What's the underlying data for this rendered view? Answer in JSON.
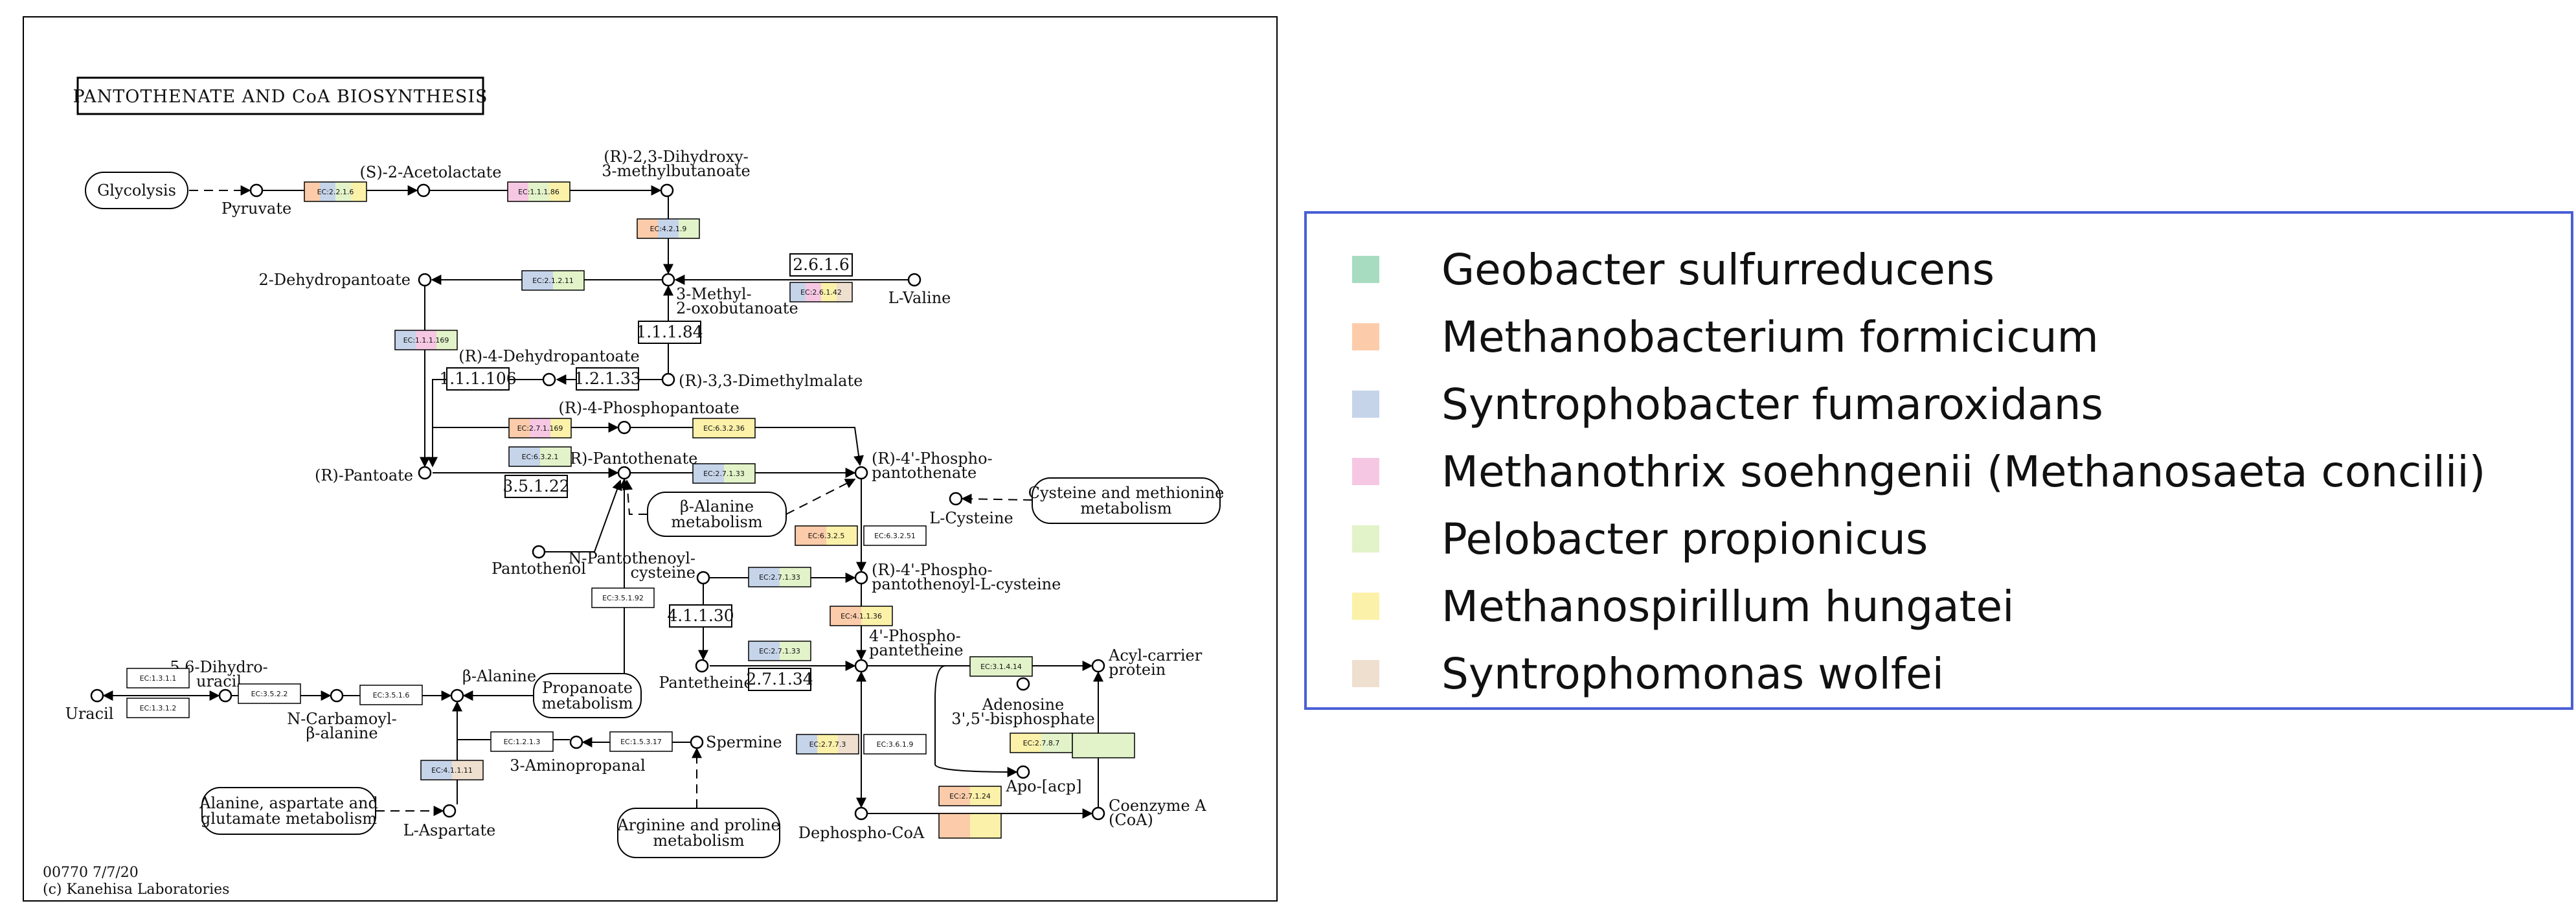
{
  "diagram": {
    "title": "PANTOTHENATE AND CoA BIOSYNTHESIS",
    "footer_map_id": "00770 7/7/20",
    "footer_copyright": "(c) Kanehisa Laboratories",
    "maps": [
      {
        "id": "glycolysis",
        "label": "Glycolysis"
      },
      {
        "id": "cys-met",
        "label": "Cysteine and methionine\nmetabolism"
      },
      {
        "id": "beta-ala",
        "label": "β-Alanine\nmetabolism"
      },
      {
        "id": "propanoate",
        "label": "Propanoate\nmetabolism"
      },
      {
        "id": "ala-asp-glu",
        "label": "Alanine, aspartate and\nglutamate metabolism"
      },
      {
        "id": "arg-pro",
        "label": "Arginine and proline\nmetabolism"
      }
    ],
    "compounds": [
      {
        "id": "pyruvate",
        "label": "Pyruvate"
      },
      {
        "id": "acetolactate",
        "label": "(S)-2-Acetolactate"
      },
      {
        "id": "dihydroxy-methylbutanoate",
        "label": "(R)-2,3-Dihydroxy-\n3-methylbutanoate"
      },
      {
        "id": "dehydropantoate",
        "label": "2-Dehydropantoate"
      },
      {
        "id": "methyl-oxobutanoate",
        "label": "3-Methyl-\n2-oxobutanoate"
      },
      {
        "id": "l-valine",
        "label": "L-Valine"
      },
      {
        "id": "r4-dehydropantoate",
        "label": "(R)-4-Dehydropantoate"
      },
      {
        "id": "dimethylmalate",
        "label": "(R)-3,3-Dimethylmalate"
      },
      {
        "id": "phosphopantoate",
        "label": "(R)-4-Phosphopantoate"
      },
      {
        "id": "pantoate",
        "label": "(R)-Pantoate"
      },
      {
        "id": "pantothenate",
        "label": "(R)-Pantothenate"
      },
      {
        "id": "phosphopantothenate",
        "label": "(R)-4'-Phospho-\npantothenate"
      },
      {
        "id": "l-cysteine",
        "label": "L-Cysteine"
      },
      {
        "id": "pantothenol",
        "label": "Pantothenol"
      },
      {
        "id": "n-pantothenoyl-cysteine",
        "label": "N-Pantothenoyl-\ncysteine"
      },
      {
        "id": "phosphopantothenoyl-cysteine",
        "label": "(R)-4'-Phospho-\npantothenoyl-L-cysteine"
      },
      {
        "id": "phosphopantetheine",
        "label": "4'-Phospho-\npantetheine"
      },
      {
        "id": "pantetheine",
        "label": "Pantetheine"
      },
      {
        "id": "acyl-carrier",
        "label": "Acyl-carrier\nprotein"
      },
      {
        "id": "adenosine-bisphosphate",
        "label": "Adenosine\n3',5'-bisphosphate"
      },
      {
        "id": "apo-acp",
        "label": "Apo-[acp]"
      },
      {
        "id": "dephospho-coa",
        "label": "Dephospho-CoA"
      },
      {
        "id": "coa",
        "label": "Coenzyme A\n(CoA)"
      },
      {
        "id": "uracil",
        "label": "Uracil"
      },
      {
        "id": "dihydrouracil",
        "label": "5,6-Dihydro-\nuracil"
      },
      {
        "id": "carbamoyl-ala",
        "label": "N-Carbamoyl-\nβ-alanine"
      },
      {
        "id": "b-alanine",
        "label": "β-Alanine"
      },
      {
        "id": "aminopropanal",
        "label": "3-Aminopropanal"
      },
      {
        "id": "spermine",
        "label": "Spermine"
      },
      {
        "id": "l-aspartate",
        "label": "L-Aspartate"
      }
    ],
    "enzymes": [
      {
        "id": "e1",
        "label": "EC:2.2.1.6",
        "colors": [
          "#fcccaa",
          "#c6d4ea",
          "#e2f3c9",
          "#fbf1a9"
        ]
      },
      {
        "id": "e2",
        "label": "EC:1.1.1.86",
        "colors": [
          "#f6c7e3",
          "#e2f3c9",
          "#fbf1a9"
        ]
      },
      {
        "id": "e3",
        "label": "EC:4.2.1.9",
        "colors": [
          "#fcccaa",
          "#c6d4ea",
          "#e2f3c9"
        ]
      },
      {
        "id": "e4",
        "label": "EC:2.1.2.11",
        "colors": [
          "#c6d4ea",
          "#e2f3c9"
        ]
      },
      {
        "id": "e5",
        "label": "EC:2.6.1.42",
        "colors": [
          "#c6d4ea",
          "#f6c7e3",
          "#fbf1a9",
          "#efdfcf"
        ]
      },
      {
        "id": "e6",
        "label": "EC:1.1.1.169",
        "colors": [
          "#c6d4ea",
          "#f6c7e3",
          "#e2f3c9"
        ]
      },
      {
        "id": "e7",
        "label": "EC:2.7.1.169",
        "colors": [
          "#fcccaa",
          "#f6c7e3",
          "#fbf1a9"
        ]
      },
      {
        "id": "e8",
        "label": "EC:6.3.2.36",
        "colors": [
          "#fbf1a9"
        ]
      },
      {
        "id": "e9",
        "label": "EC:6.3.2.1",
        "colors": [
          "#c6d4ea",
          "#e2f3c9"
        ]
      },
      {
        "id": "e10",
        "label": "EC:2.7.1.33",
        "colors": [
          "#c6d4ea",
          "#e2f3c9"
        ]
      },
      {
        "id": "e11",
        "label": "EC:6.3.2.5",
        "colors": [
          "#fcccaa",
          "#fbf1a9"
        ]
      },
      {
        "id": "e12",
        "label": "EC:6.3.2.51",
        "colors": []
      },
      {
        "id": "e13",
        "label": "EC:2.7.1.33",
        "colors": [
          "#c6d4ea",
          "#e2f3c9"
        ]
      },
      {
        "id": "e14",
        "label": "EC:3.5.1.92",
        "colors": []
      },
      {
        "id": "e15",
        "label": "EC:4.1.1.36",
        "colors": [
          "#fcccaa",
          "#fbf1a9"
        ]
      },
      {
        "id": "e16",
        "label": "EC:2.7.1.33",
        "colors": [
          "#c6d4ea",
          "#e2f3c9"
        ]
      },
      {
        "id": "e17",
        "label": "EC:3.1.4.14",
        "colors": [
          "#e2f3c9"
        ]
      },
      {
        "id": "e18",
        "label": "EC:2.7.8.7",
        "colors": [
          "#fbf1a9",
          "#e2f3c9"
        ]
      },
      {
        "id": "e19",
        "label": "EC:2.7.7.3",
        "colors": [
          "#c6d4ea",
          "#fbf1a9",
          "#efdfcf"
        ]
      },
      {
        "id": "e20",
        "label": "EC:3.6.1.9",
        "colors": []
      },
      {
        "id": "e21",
        "label": "EC:2.7.1.24",
        "colors": [
          "#fcccaa",
          "#fbf1a9"
        ]
      },
      {
        "id": "e22",
        "label": "EC:1.3.1.1",
        "colors": []
      },
      {
        "id": "e23",
        "label": "EC:1.3.1.2",
        "colors": []
      },
      {
        "id": "e24",
        "label": "EC:3.5.2.2",
        "colors": []
      },
      {
        "id": "e25",
        "label": "EC:3.5.1.6",
        "colors": []
      },
      {
        "id": "e26",
        "label": "EC:1.2.1.3",
        "colors": []
      },
      {
        "id": "e27",
        "label": "EC:1.5.3.17",
        "colors": []
      },
      {
        "id": "e28",
        "label": "EC:4.1.1.11",
        "colors": [
          "#c6d4ea",
          "#efdfcf"
        ]
      }
    ],
    "numbers": [
      {
        "id": "n1",
        "label": "2.6.1.6"
      },
      {
        "id": "n2",
        "label": "1.1.1.84"
      },
      {
        "id": "n3",
        "label": "1.1.1.106"
      },
      {
        "id": "n4",
        "label": "1.2.1.33"
      },
      {
        "id": "n5",
        "label": "3.5.1.22"
      },
      {
        "id": "n6",
        "label": "4.1.1.30"
      },
      {
        "id": "n7",
        "label": "2.7.1.34"
      }
    ]
  },
  "legend": {
    "items": [
      {
        "label": "Geobacter sulfurreducens",
        "color": "#a8dcc0"
      },
      {
        "label": "Methanobacterium formicicum",
        "color": "#fcccaa"
      },
      {
        "label": "Syntrophobacter fumaroxidans",
        "color": "#c6d4ea"
      },
      {
        "label": "Methanothrix soehngenii (Methanosaeta concilii)",
        "color": "#f6c7e3"
      },
      {
        "label": "Pelobacter propionicus",
        "color": "#e2f3c9"
      },
      {
        "label": "Methanospirillum hungatei",
        "color": "#fbf1a9"
      },
      {
        "label": "Syntrophomonas wolfei",
        "color": "#efdfcf"
      }
    ]
  }
}
